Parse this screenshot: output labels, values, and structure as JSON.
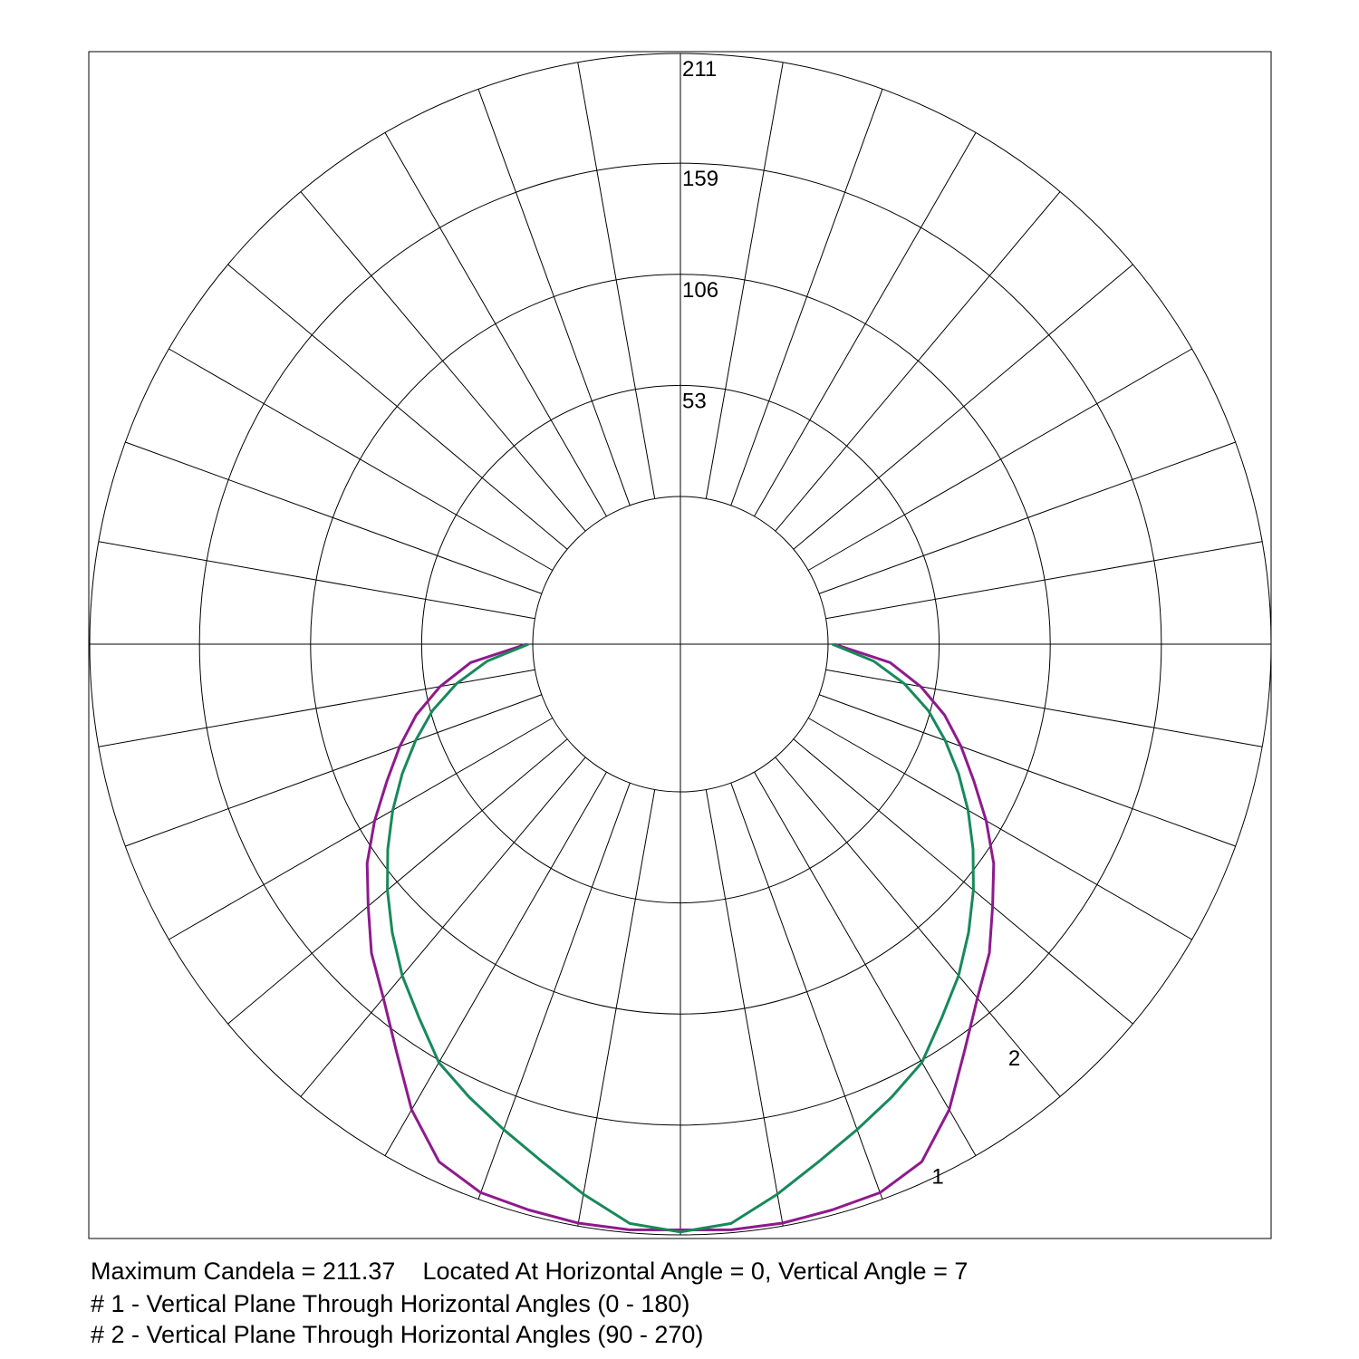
{
  "chart_data": {
    "type": "polar",
    "rings": [
      "53",
      "106",
      "159",
      "211"
    ],
    "ring_values": [
      53,
      106,
      159,
      211.37
    ],
    "r_max": 211.37,
    "radial_step_deg": 10,
    "grid": true,
    "series": [
      {
        "label": "1",
        "color": "#8e1a8c",
        "angles_deg": [
          0,
          5,
          10,
          15,
          20,
          25,
          30,
          35,
          40,
          45,
          50,
          55,
          60,
          65,
          70,
          75,
          80,
          85,
          90
        ],
        "values": [
          209,
          210,
          210,
          209,
          208,
          202,
          186,
          166,
          150,
          138,
          124,
          112,
          98,
          84,
          72,
          60,
          46,
          30,
          3
        ]
      },
      {
        "label": "2",
        "color": "#17895a",
        "angles_deg": [
          0,
          5,
          10,
          15,
          20,
          25,
          30,
          35,
          40,
          45,
          50,
          55,
          60,
          65,
          70,
          75,
          80,
          85,
          90
        ],
        "values": [
          210,
          207,
          196,
          185,
          176,
          168,
          160,
          147,
          136,
          124,
          112,
          100,
          88,
          76,
          64,
          52,
          38,
          22,
          2
        ]
      }
    ]
  },
  "footer": {
    "line0": "Maximum Candela = 211.37    Located At Horizontal Angle = 0, Vertical Angle = 7",
    "line1": "# 1 - Vertical Plane Through Horizontal Angles (0 - 180)",
    "line2": "# 2 - Vertical Plane Through Horizontal Angles (90 - 270)"
  }
}
